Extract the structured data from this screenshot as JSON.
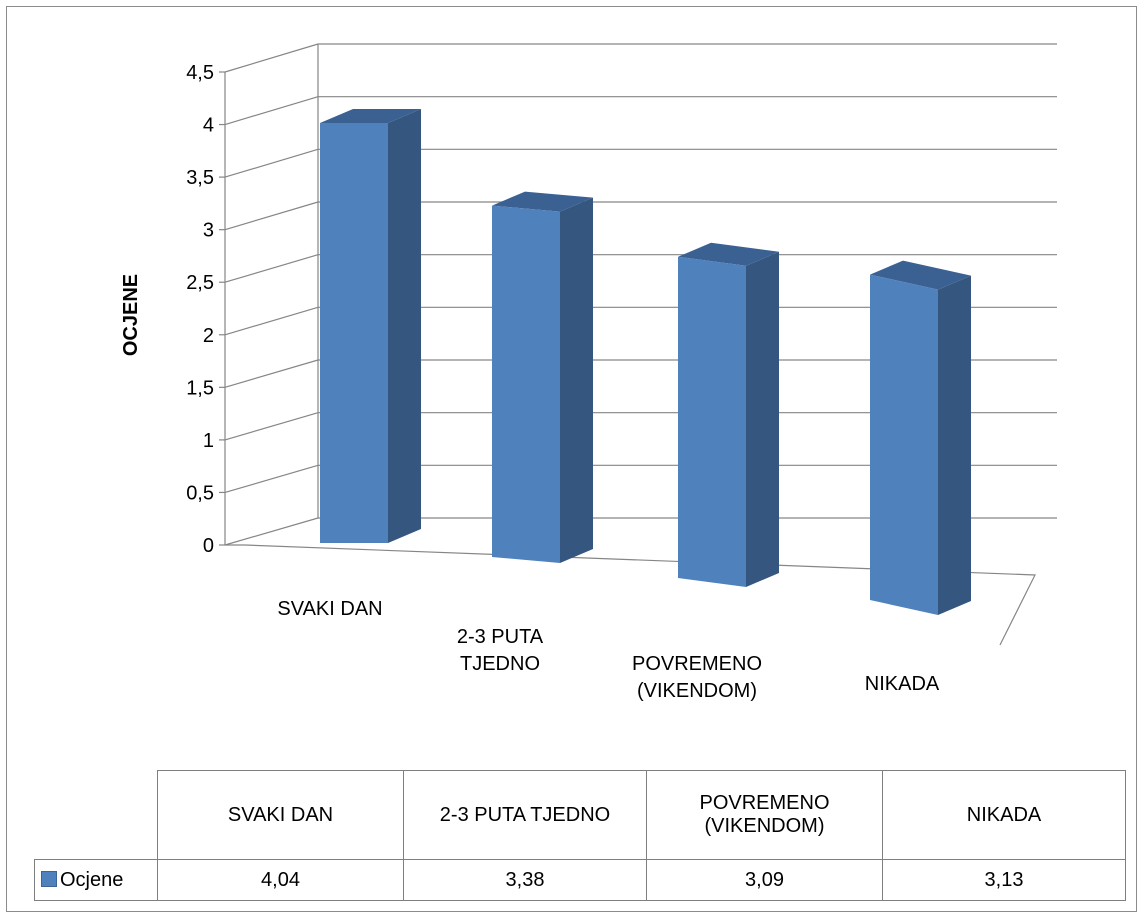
{
  "chart_data": {
    "type": "bar",
    "style": "3d-column",
    "ylabel": "OCJENE",
    "ylim": [
      0,
      4.5
    ],
    "ytick_step": 0.5,
    "y_ticks": [
      "0",
      "0,5",
      "1",
      "1,5",
      "2",
      "2,5",
      "3",
      "3,5",
      "4",
      "4,5"
    ],
    "categories": [
      "SVAKI DAN",
      "2-3 PUTA TJEDNO",
      "POVREMENO (VIKENDOM)",
      "NIKADA"
    ],
    "axis_category_lines": [
      [
        "SVAKI DAN"
      ],
      [
        "2-3 PUTA",
        "TJEDNO"
      ],
      [
        "POVREMENO",
        "(VIKENDOM)"
      ],
      [
        "NIKADA"
      ]
    ],
    "table_header_lines": [
      [
        "SVAKI DAN"
      ],
      [
        "2-3 PUTA TJEDNO"
      ],
      [
        "POVREMENO",
        "(VIKENDOM)"
      ],
      [
        "NIKADA"
      ]
    ],
    "series": [
      {
        "name": "Ocjene",
        "values": [
          4.04,
          3.38,
          3.09,
          3.13
        ],
        "labels": [
          "4,04",
          "3,38",
          "3,09",
          "3,13"
        ]
      }
    ],
    "grid": true,
    "legend": "data-table",
    "colors": {
      "front": "#4f81bd",
      "side": "#34567f",
      "top": "#3b6193"
    }
  }
}
